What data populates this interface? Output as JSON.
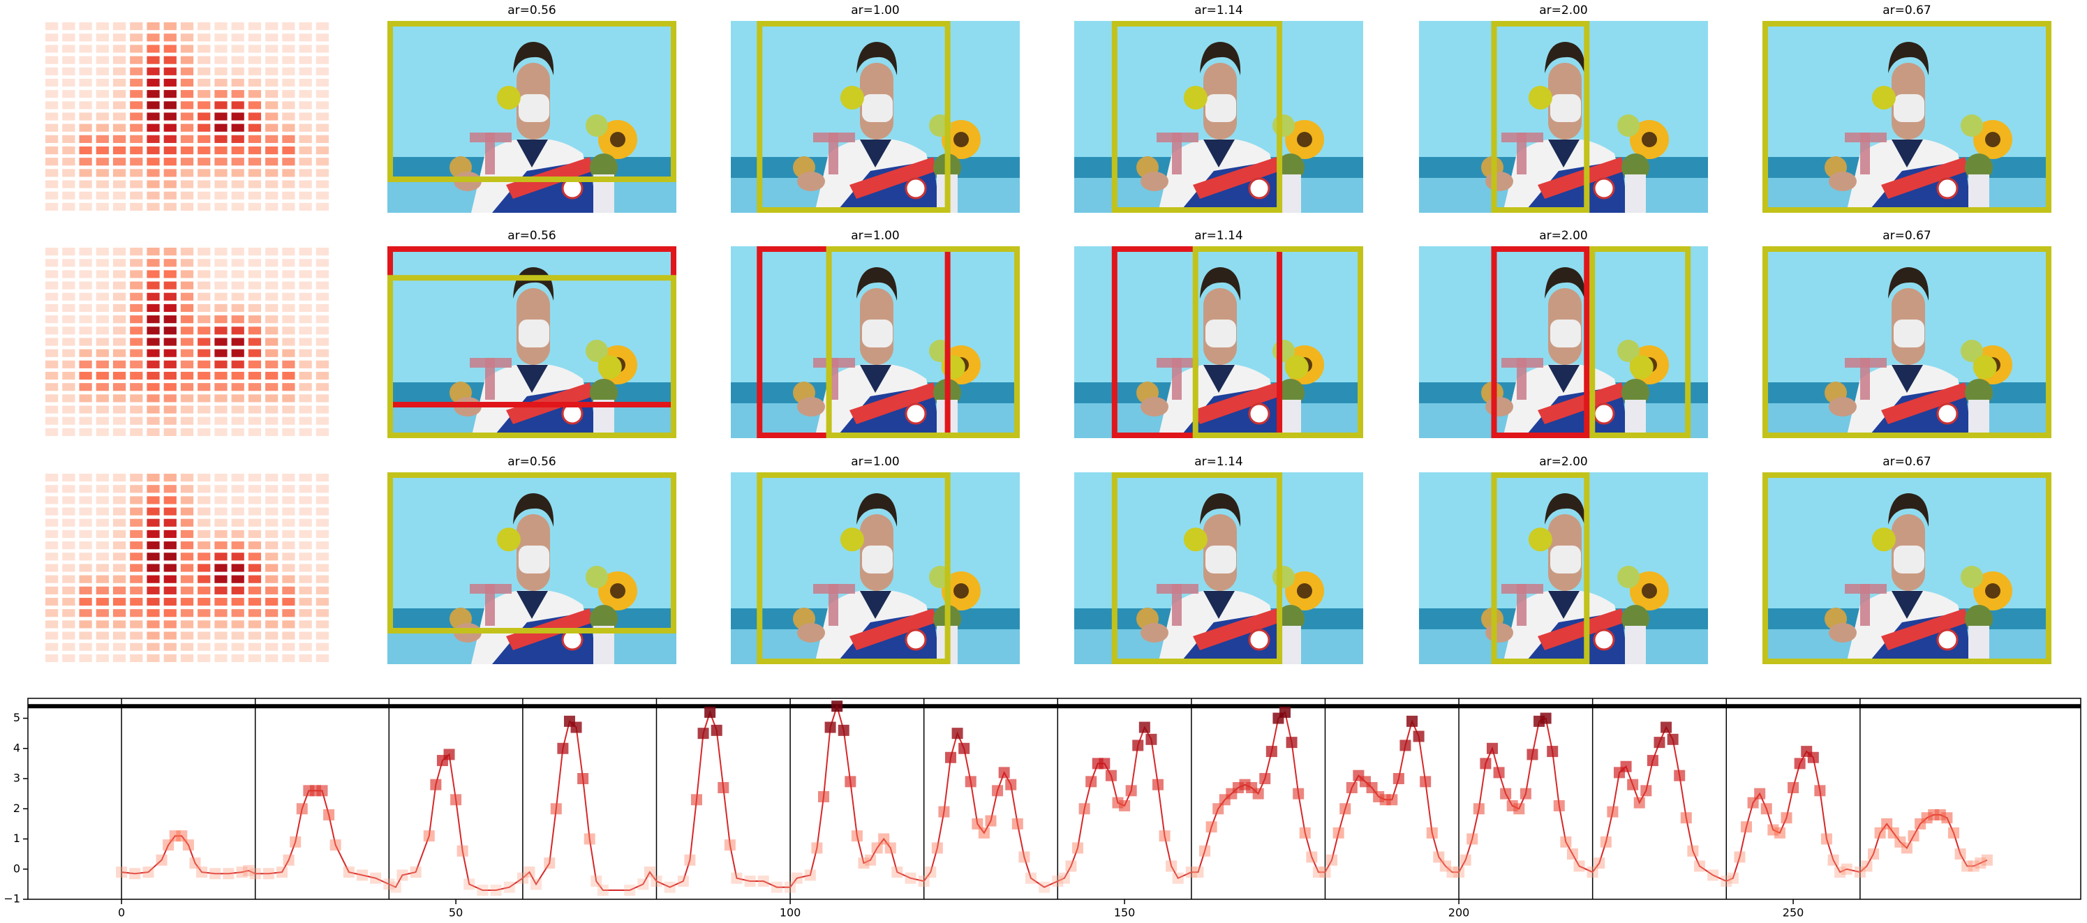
{
  "image_grid": {
    "titles": [
      [
        "ar=0.56",
        "ar=1.00",
        "ar=1.14",
        "ar=2.00",
        "ar=0.67"
      ],
      [
        "ar=0.56",
        "ar=1.00",
        "ar=1.14",
        "ar=2.00",
        "ar=0.67"
      ],
      [
        "ar=0.56",
        "ar=1.00",
        "ar=1.14",
        "ar=2.00",
        "ar=0.67"
      ]
    ]
  },
  "chart_data": {
    "type": "line",
    "x": [
      0,
      2,
      4,
      6,
      7,
      8,
      9,
      10,
      11,
      12,
      14,
      16,
      18,
      19,
      20,
      22,
      24,
      25,
      26,
      27,
      28,
      29,
      30,
      31,
      32,
      34,
      36,
      38,
      40,
      41,
      42,
      44,
      46,
      47,
      48,
      49,
      50,
      51,
      52,
      54,
      56,
      58,
      60,
      61,
      62,
      64,
      65,
      66,
      67,
      68,
      69,
      70,
      71,
      72,
      76,
      78,
      79,
      80,
      82,
      84,
      85,
      86,
      87,
      88,
      89,
      90,
      91,
      92,
      94,
      96,
      98,
      100,
      101,
      103,
      104,
      105,
      106,
      107,
      108,
      109,
      110,
      111,
      112,
      113,
      114,
      115,
      116,
      118,
      120,
      121,
      122,
      123,
      124,
      125,
      126,
      127,
      128,
      129,
      130,
      131,
      132,
      133,
      134,
      135,
      136,
      138,
      140,
      141,
      142,
      143,
      144,
      145,
      146,
      147,
      148,
      149,
      150,
      151,
      152,
      153,
      154,
      155,
      156,
      157,
      158,
      160,
      161,
      162,
      163,
      164,
      165,
      166,
      167,
      168,
      169,
      170,
      171,
      172,
      173,
      174,
      175,
      176,
      177,
      178,
      179,
      180,
      181,
      182,
      183,
      184,
      185,
      186,
      187,
      188,
      189,
      190,
      191,
      192,
      193,
      194,
      195,
      196,
      197,
      198,
      199,
      200,
      201,
      202,
      203,
      204,
      205,
      206,
      207,
      208,
      209,
      210,
      211,
      212,
      213,
      214,
      215,
      216,
      217,
      218,
      220,
      221,
      222,
      223,
      224,
      225,
      226,
      227,
      228,
      229,
      230,
      231,
      232,
      233,
      234,
      235,
      236,
      238,
      240,
      241,
      242,
      243,
      244,
      245,
      246,
      247,
      248,
      249,
      250,
      251,
      252,
      253,
      254,
      255,
      256,
      257,
      258,
      260,
      261,
      262,
      263,
      264,
      265,
      266,
      267,
      268,
      269,
      270,
      271,
      272,
      273,
      274,
      275,
      276,
      277,
      278,
      279
    ],
    "series": [
      {
        "color": "#d62728",
        "values": [
          -0.1,
          -0.15,
          -0.1,
          0.3,
          0.8,
          1.1,
          1.1,
          0.8,
          0.2,
          -0.1,
          -0.15,
          -0.15,
          -0.1,
          -0.05,
          -0.15,
          -0.15,
          -0.1,
          0.3,
          0.9,
          2.0,
          2.6,
          2.6,
          2.6,
          1.8,
          0.8,
          -0.1,
          -0.2,
          -0.3,
          -0.5,
          -0.6,
          -0.2,
          -0.1,
          1.1,
          2.8,
          3.6,
          3.8,
          2.3,
          0.6,
          -0.5,
          -0.7,
          -0.7,
          -0.6,
          -0.3,
          -0.1,
          -0.5,
          0.2,
          2.0,
          4.0,
          4.9,
          4.7,
          3.0,
          1.0,
          -0.4,
          -0.7,
          -0.7,
          -0.5,
          -0.1,
          -0.4,
          -0.6,
          -0.4,
          0.3,
          2.3,
          4.5,
          5.2,
          4.6,
          2.7,
          0.8,
          -0.3,
          -0.4,
          -0.4,
          -0.6,
          -0.6,
          -0.3,
          -0.2,
          0.7,
          2.4,
          4.7,
          5.4,
          4.6,
          2.9,
          1.1,
          0.2,
          0.3,
          0.7,
          1.0,
          0.7,
          -0.1,
          -0.3,
          -0.4,
          -0.1,
          0.7,
          1.9,
          3.7,
          4.5,
          4.0,
          2.9,
          1.5,
          1.2,
          1.6,
          2.6,
          3.2,
          2.8,
          1.5,
          0.4,
          -0.3,
          -0.6,
          -0.4,
          -0.3,
          0.1,
          0.7,
          2.0,
          2.9,
          3.5,
          3.5,
          3.1,
          2.2,
          2.1,
          2.6,
          4.1,
          4.7,
          4.3,
          2.8,
          1.1,
          0.1,
          -0.3,
          -0.1,
          -0.1,
          0.6,
          1.4,
          2.0,
          2.3,
          2.5,
          2.7,
          2.8,
          2.7,
          2.5,
          3.0,
          3.9,
          5.0,
          5.2,
          4.2,
          2.5,
          1.2,
          0.4,
          -0.1,
          -0.1,
          0.3,
          1.2,
          2.0,
          2.7,
          3.1,
          2.9,
          2.7,
          2.4,
          2.3,
          2.3,
          3.0,
          4.1,
          4.9,
          4.4,
          2.9,
          1.2,
          0.4,
          0.1,
          -0.1,
          -0.1,
          0.3,
          1.0,
          2.0,
          3.5,
          4.0,
          3.2,
          2.5,
          2.1,
          2.0,
          2.5,
          3.8,
          4.9,
          5.0,
          3.9,
          2.1,
          0.9,
          0.5,
          0.1,
          -0.1,
          0.2,
          0.9,
          1.9,
          3.2,
          3.4,
          2.8,
          2.2,
          2.6,
          3.6,
          4.2,
          4.7,
          4.3,
          3.1,
          1.7,
          0.6,
          0.1,
          -0.2,
          -0.4,
          -0.3,
          0.4,
          1.4,
          2.2,
          2.5,
          2.0,
          1.3,
          1.2,
          1.7,
          2.7,
          3.5,
          3.9,
          3.7,
          2.6,
          1.0,
          0.3,
          -0.1,
          0.0,
          -0.1,
          0.1,
          0.5,
          1.2,
          1.5,
          1.2,
          0.9,
          0.7,
          1.1,
          1.5,
          1.7,
          1.8,
          1.8,
          1.7,
          1.2,
          0.5,
          0.1,
          0.1,
          0.2,
          0.3
        ]
      }
    ],
    "xlim": [
      -14,
      293
    ],
    "ylim": [
      -1,
      5.66
    ],
    "xticks": [
      0,
      50,
      100,
      150,
      200,
      250
    ],
    "yticks": [
      {
        "value": -1,
        "label": "−1"
      },
      0,
      1,
      2,
      3,
      4,
      5
    ],
    "vlines": [
      0,
      20,
      40,
      60,
      80,
      100,
      120,
      140,
      160,
      180,
      200,
      220,
      240,
      260
    ],
    "hline": 5.4
  }
}
